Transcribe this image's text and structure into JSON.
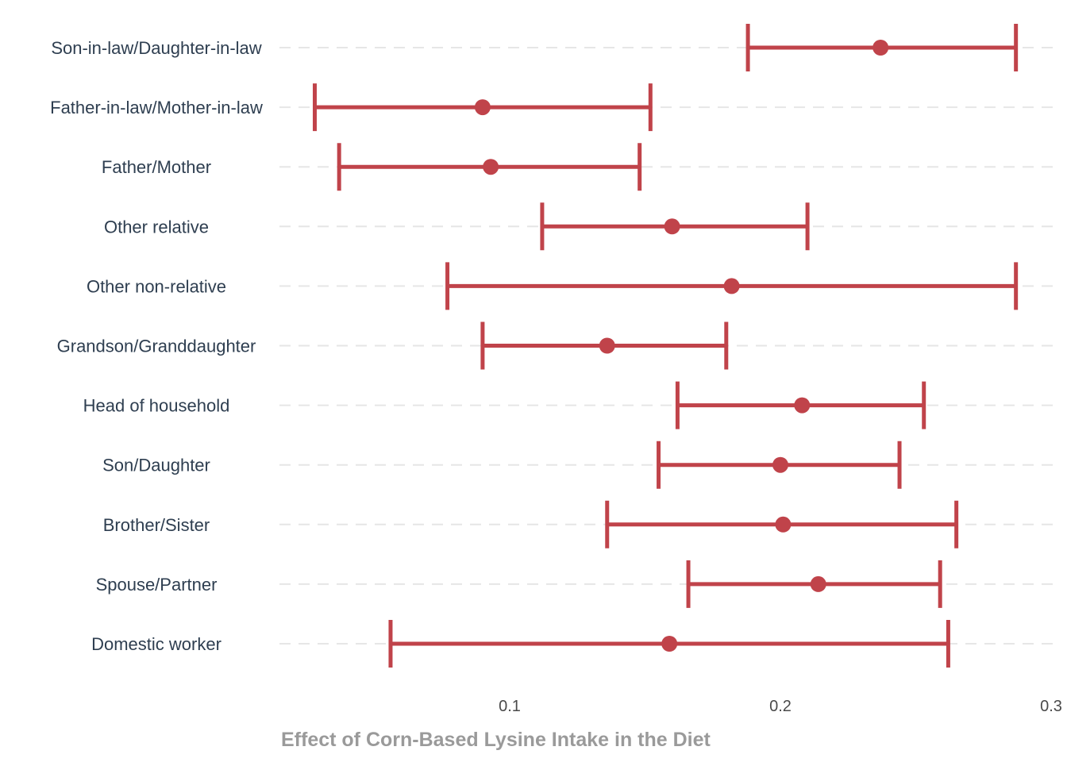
{
  "chart_data": {
    "type": "errorbar",
    "title": "",
    "xlabel": "Effect of Corn-Based Lysine Intake in the Diet",
    "ylabel": "",
    "xlim": [
      0.015,
      0.3
    ],
    "x_ticks": [
      "0.1",
      "0.2",
      "0.3"
    ],
    "x_tick_values": [
      0.1,
      0.2,
      0.3
    ],
    "grid": "horizontal dashed",
    "color": "#c0434a",
    "categories": [
      "Son-in-law/Daughter-in-law",
      "Father-in-law/Mother-in-law",
      "Father/Mother",
      "Other relative",
      "Other non-relative",
      "Grandson/Granddaughter",
      "Head of household",
      "Son/Daughter",
      "Brother/Sister",
      "Spouse/Partner",
      "Domestic worker"
    ],
    "estimate": [
      0.237,
      0.09,
      0.093,
      0.16,
      0.182,
      0.136,
      0.208,
      0.2,
      0.201,
      0.214,
      0.159
    ],
    "lower": [
      0.188,
      0.028,
      0.037,
      0.112,
      0.077,
      0.09,
      0.162,
      0.155,
      0.136,
      0.166,
      0.056
    ],
    "upper": [
      0.287,
      0.152,
      0.148,
      0.21,
      0.287,
      0.18,
      0.253,
      0.244,
      0.265,
      0.259,
      0.262
    ]
  }
}
